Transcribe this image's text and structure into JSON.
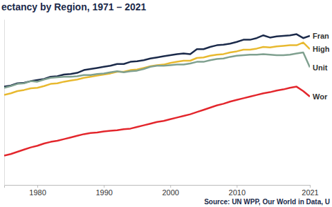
{
  "chart_data": {
    "type": "line",
    "title": "ectancy by Region, 1971 – 2021",
    "source": "Source: UN WPP, Our World in Data, U",
    "x": [
      1975,
      1976,
      1977,
      1978,
      1979,
      1980,
      1981,
      1982,
      1983,
      1984,
      1985,
      1986,
      1987,
      1988,
      1989,
      1990,
      1991,
      1992,
      1993,
      1994,
      1995,
      1996,
      1997,
      1998,
      1999,
      2000,
      2001,
      2002,
      2003,
      2004,
      2005,
      2006,
      2007,
      2008,
      2009,
      2010,
      2011,
      2012,
      2013,
      2014,
      2015,
      2016,
      2017,
      2018,
      2019,
      2020,
      2021
    ],
    "series": [
      {
        "name": "Fran",
        "color": "#1b2a4a",
        "values": [
          72.8,
          73.0,
          73.4,
          73.5,
          73.8,
          74.0,
          74.2,
          74.6,
          74.7,
          75.0,
          75.1,
          75.3,
          75.8,
          76.0,
          76.2,
          76.4,
          76.6,
          76.9,
          76.9,
          77.3,
          77.4,
          77.6,
          77.9,
          78.1,
          78.3,
          78.5,
          78.7,
          78.8,
          78.7,
          79.6,
          79.6,
          80.0,
          80.3,
          80.4,
          80.6,
          80.9,
          81.3,
          81.3,
          81.6,
          82.1,
          81.7,
          81.9,
          82.0,
          82.1,
          82.3,
          81.6,
          82.0
        ]
      },
      {
        "name": "High",
        "color": "#e8b92f",
        "values": [
          71.3,
          71.6,
          72.0,
          72.2,
          72.5,
          72.6,
          72.9,
          73.3,
          73.4,
          73.7,
          73.9,
          74.1,
          74.4,
          74.6,
          74.8,
          75.0,
          75.2,
          75.5,
          75.5,
          75.8,
          75.9,
          76.2,
          76.5,
          76.7,
          76.8,
          77.1,
          77.3,
          77.5,
          77.5,
          78.0,
          78.1,
          78.4,
          78.6,
          78.7,
          79.0,
          79.2,
          79.5,
          79.5,
          79.7,
          80.0,
          79.9,
          80.1,
          80.2,
          80.3,
          80.3,
          80.8,
          79.6
        ]
      },
      {
        "name": "Unit",
        "color": "#7fa08f",
        "values": [
          72.6,
          72.9,
          73.3,
          73.4,
          73.8,
          73.7,
          74.1,
          74.4,
          74.5,
          74.6,
          74.6,
          74.7,
          74.9,
          74.9,
          75.1,
          75.2,
          75.4,
          75.6,
          75.4,
          75.6,
          75.7,
          76.0,
          76.4,
          76.6,
          76.6,
          76.7,
          76.8,
          76.8,
          77.0,
          77.3,
          77.3,
          77.6,
          77.8,
          77.9,
          78.2,
          78.4,
          78.5,
          78.6,
          78.6,
          78.7,
          78.6,
          78.5,
          78.5,
          78.6,
          78.8,
          79.0,
          76.3
        ]
      },
      {
        "name": "Wor",
        "color": "#e3262c",
        "values": [
          60.3,
          60.6,
          61.0,
          61.4,
          61.8,
          62.1,
          62.5,
          62.8,
          63.0,
          63.3,
          63.6,
          63.9,
          64.2,
          64.4,
          64.5,
          64.7,
          64.8,
          64.9,
          65.1,
          65.2,
          65.5,
          65.8,
          66.1,
          66.4,
          66.6,
          66.9,
          67.2,
          67.5,
          67.8,
          68.2,
          68.6,
          69.0,
          69.4,
          69.7,
          70.1,
          70.4,
          70.7,
          71.0,
          71.3,
          71.6,
          71.8,
          72.1,
          72.3,
          72.6,
          72.8,
          72.0,
          71.0
        ]
      }
    ],
    "xlim": [
      1975,
      2021
    ],
    "xticks": [
      1980,
      1990,
      2000,
      2010,
      2021
    ],
    "ylim": [
      55,
      85
    ],
    "yticks": [],
    "tick_labels": "x",
    "grid": false
  }
}
